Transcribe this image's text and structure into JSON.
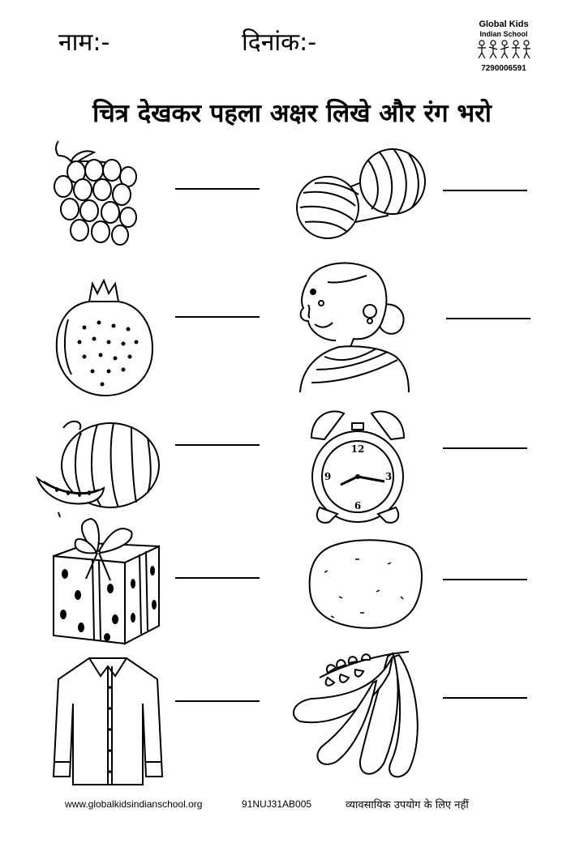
{
  "header": {
    "name_label": "नाम:-",
    "date_label": "दिनांक:-"
  },
  "logo": {
    "line1": "Global Kids",
    "line2": "Indian School",
    "phone": "7290006591"
  },
  "title": "चित्र देखकर पहला अक्षर लिखे और रंग भरो",
  "items": [
    {
      "icon": "grapes-icon"
    },
    {
      "icon": "yarn-balls-icon"
    },
    {
      "icon": "pomegranate-icon"
    },
    {
      "icon": "old-woman-icon"
    },
    {
      "icon": "watermelon-icon"
    },
    {
      "icon": "alarm-clock-icon"
    },
    {
      "icon": "gift-box-icon"
    },
    {
      "icon": "potato-icon"
    },
    {
      "icon": "shirt-icon"
    },
    {
      "icon": "beans-icon"
    }
  ],
  "clock": {
    "n12": "12",
    "n3": "3",
    "n6": "6",
    "n9": "9"
  },
  "footer": {
    "website": "www.globalkidsindianschool.org",
    "code": "91NUJ31AB005",
    "notice": "व्यावसायिक उपयोग के लिए नहीं"
  }
}
